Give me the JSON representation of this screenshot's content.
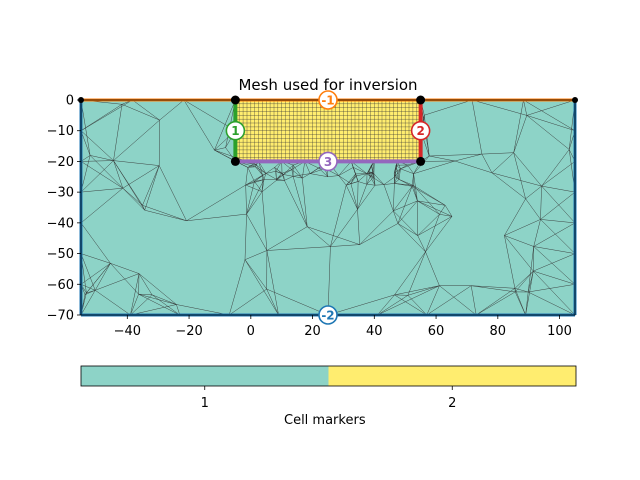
{
  "title": "Mesh used for inversion",
  "axes": {
    "x_ticks": [
      "−40",
      "−20",
      "0",
      "20",
      "40",
      "60",
      "80",
      "100"
    ],
    "y_ticks": [
      "0",
      "−10",
      "−20",
      "−30",
      "−40",
      "−50",
      "−60",
      "−70"
    ],
    "x_tick_values": [
      -40,
      -20,
      0,
      20,
      40,
      60,
      80,
      100
    ],
    "y_tick_values": [
      0,
      -10,
      -20,
      -30,
      -40,
      -50,
      -60,
      -70
    ],
    "xlim": [
      -55,
      105
    ],
    "ylim": [
      -70,
      0
    ]
  },
  "regions": {
    "background_color": "#8dd3c7",
    "inversion_color": "#ffed6f",
    "inversion_box": {
      "x": [
        -5,
        55
      ],
      "y": [
        -20,
        0
      ]
    }
  },
  "boundary_markers": [
    {
      "label": "-1",
      "x": 25,
      "y": 0,
      "color": "#ff7f0e"
    },
    {
      "label": "1",
      "x": -5,
      "y": -10,
      "color": "#2ca02c"
    },
    {
      "label": "2",
      "x": 55,
      "y": -10,
      "color": "#d62728"
    },
    {
      "label": "3",
      "x": 25,
      "y": -20,
      "color": "#9467bd"
    },
    {
      "label": "-2",
      "x": 25,
      "y": -70,
      "color": "#1f77b4"
    }
  ],
  "colorbar": {
    "ticks": [
      "1",
      "2"
    ],
    "label": "Cell markers",
    "colors": [
      "#8dd3c7",
      "#ffed6f"
    ]
  }
}
